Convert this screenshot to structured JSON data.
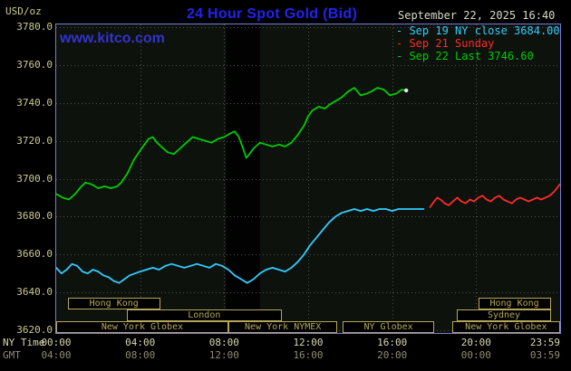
{
  "header": {
    "units_label": "USD/oz",
    "title": "24 Hour Spot Gold (Bid)",
    "datetime": "September 22, 2025 16:40",
    "watermark": "www.kitco.com"
  },
  "axes": {
    "y_tick_labels": [
      "3780.0",
      "3760.0",
      "3740.0",
      "3720.0",
      "3700.0",
      "3680.0",
      "3660.0",
      "3640.0",
      "3620.0"
    ],
    "y_min": 3620,
    "y_max": 3780,
    "x_axis_rows": {
      "ny_label": "NY Time",
      "gmt_label": "GMT",
      "tick_hours": [
        0,
        4,
        8,
        12,
        16,
        20,
        23.983
      ],
      "ny_ticks": [
        "00:00",
        "04:00",
        "08:00",
        "12:00",
        "16:00",
        "20:00",
        "23:59"
      ],
      "gmt_ticks": [
        "04:00",
        "08:00",
        "12:00",
        "16:00",
        "20:00",
        "00:00",
        "03:59"
      ]
    }
  },
  "sessions": [
    {
      "row": 0,
      "start": 0.55,
      "end": 4.95,
      "label": "Hong Kong"
    },
    {
      "row": 0,
      "start": 20.1,
      "end": 23.55,
      "label": "Hong Kong"
    },
    {
      "row": 1,
      "start": 3.35,
      "end": 10.75,
      "label": "London"
    },
    {
      "row": 1,
      "start": 19.1,
      "end": 23.55,
      "label": "Sydney"
    },
    {
      "row": 2,
      "start": 0,
      "end": 8.2,
      "label": "New York Globex"
    },
    {
      "row": 2,
      "start": 8.2,
      "end": 13.4,
      "label": "New York NYMEX"
    },
    {
      "row": 2,
      "start": 13.65,
      "end": 18.0,
      "label": "NY Globex"
    },
    {
      "row": 2,
      "start": 18.85,
      "end": 24,
      "label": "New York Globex"
    }
  ],
  "chart_data": {
    "type": "line",
    "title": "24 Hour Spot Gold (Bid)",
    "x_unit": "NY time (hours 0-24)",
    "y_unit": "USD/oz",
    "xlim": [
      0,
      24
    ],
    "ylim": [
      3620,
      3780
    ],
    "grid": true,
    "legend_position": "top-right",
    "highlight_band_hours": [
      8.1,
      9.7
    ],
    "series": [
      {
        "id": "sep19",
        "name": "Sep 19 NY close 3684.00",
        "color": "#33ccff",
        "points": [
          [
            0,
            3653
          ],
          [
            0.25,
            3650
          ],
          [
            0.5,
            3652
          ],
          [
            0.75,
            3655
          ],
          [
            1,
            3654
          ],
          [
            1.25,
            3651
          ],
          [
            1.5,
            3650
          ],
          [
            1.75,
            3652
          ],
          [
            2,
            3651
          ],
          [
            2.25,
            3649
          ],
          [
            2.5,
            3648
          ],
          [
            2.75,
            3646
          ],
          [
            3,
            3645
          ],
          [
            3.25,
            3647
          ],
          [
            3.5,
            3649
          ],
          [
            3.75,
            3650
          ],
          [
            4,
            3651
          ],
          [
            4.3,
            3652
          ],
          [
            4.6,
            3653
          ],
          [
            4.9,
            3652
          ],
          [
            5.2,
            3654
          ],
          [
            5.5,
            3655
          ],
          [
            5.8,
            3654
          ],
          [
            6.1,
            3653
          ],
          [
            6.4,
            3654
          ],
          [
            6.7,
            3655
          ],
          [
            7,
            3654
          ],
          [
            7.3,
            3653
          ],
          [
            7.6,
            3655
          ],
          [
            7.9,
            3654
          ],
          [
            8.2,
            3652
          ],
          [
            8.5,
            3649
          ],
          [
            8.8,
            3647
          ],
          [
            9.1,
            3645
          ],
          [
            9.4,
            3647
          ],
          [
            9.7,
            3650
          ],
          [
            10,
            3652
          ],
          [
            10.3,
            3653
          ],
          [
            10.6,
            3652
          ],
          [
            10.9,
            3651
          ],
          [
            11.2,
            3653
          ],
          [
            11.5,
            3656
          ],
          [
            11.8,
            3660
          ],
          [
            12.1,
            3665
          ],
          [
            12.4,
            3669
          ],
          [
            12.7,
            3673
          ],
          [
            13,
            3677
          ],
          [
            13.3,
            3680
          ],
          [
            13.6,
            3682
          ],
          [
            13.9,
            3683
          ],
          [
            14.2,
            3684
          ],
          [
            14.5,
            3683
          ],
          [
            14.8,
            3684
          ],
          [
            15.1,
            3683
          ],
          [
            15.4,
            3684
          ],
          [
            15.7,
            3684
          ],
          [
            16,
            3683
          ],
          [
            16.3,
            3684
          ],
          [
            16.6,
            3684
          ],
          [
            16.9,
            3684
          ],
          [
            17.2,
            3684
          ],
          [
            17.5,
            3684
          ]
        ]
      },
      {
        "id": "sep21",
        "name": "Sep 21 Sunday",
        "color": "#ff2a2a",
        "points": [
          [
            17.8,
            3685
          ],
          [
            18,
            3688
          ],
          [
            18.15,
            3690
          ],
          [
            18.3,
            3689
          ],
          [
            18.5,
            3687
          ],
          [
            18.7,
            3686
          ],
          [
            18.9,
            3688
          ],
          [
            19.1,
            3690
          ],
          [
            19.3,
            3688
          ],
          [
            19.5,
            3687
          ],
          [
            19.7,
            3689
          ],
          [
            19.9,
            3688
          ],
          [
            20.1,
            3690
          ],
          [
            20.3,
            3691
          ],
          [
            20.5,
            3689
          ],
          [
            20.7,
            3688
          ],
          [
            20.9,
            3690
          ],
          [
            21.1,
            3691
          ],
          [
            21.3,
            3689
          ],
          [
            21.5,
            3688
          ],
          [
            21.7,
            3687
          ],
          [
            21.9,
            3689
          ],
          [
            22.1,
            3690
          ],
          [
            22.3,
            3689
          ],
          [
            22.5,
            3688
          ],
          [
            22.7,
            3689
          ],
          [
            22.9,
            3690
          ],
          [
            23.1,
            3689
          ],
          [
            23.3,
            3690
          ],
          [
            23.5,
            3691
          ],
          [
            23.7,
            3693
          ],
          [
            23.85,
            3695
          ],
          [
            23.98,
            3697
          ]
        ]
      },
      {
        "id": "sep22",
        "name": "Sep 22 Last 3746.60",
        "color": "#00cc00",
        "end_marker": true,
        "points": [
          [
            0,
            3692
          ],
          [
            0.3,
            3690
          ],
          [
            0.6,
            3689
          ],
          [
            0.9,
            3692
          ],
          [
            1.2,
            3696
          ],
          [
            1.4,
            3698
          ],
          [
            1.7,
            3697
          ],
          [
            2,
            3695
          ],
          [
            2.3,
            3696
          ],
          [
            2.6,
            3695
          ],
          [
            2.9,
            3696
          ],
          [
            3.1,
            3698
          ],
          [
            3.4,
            3703
          ],
          [
            3.7,
            3710
          ],
          [
            4,
            3715
          ],
          [
            4.2,
            3718
          ],
          [
            4.4,
            3721
          ],
          [
            4.6,
            3722
          ],
          [
            4.8,
            3719
          ],
          [
            5,
            3717
          ],
          [
            5.3,
            3714
          ],
          [
            5.6,
            3713
          ],
          [
            5.9,
            3716
          ],
          [
            6.2,
            3719
          ],
          [
            6.5,
            3722
          ],
          [
            6.8,
            3721
          ],
          [
            7.1,
            3720
          ],
          [
            7.4,
            3719
          ],
          [
            7.7,
            3721
          ],
          [
            8,
            3722
          ],
          [
            8.3,
            3724
          ],
          [
            8.5,
            3725
          ],
          [
            8.7,
            3722
          ],
          [
            8.9,
            3716
          ],
          [
            9.05,
            3711
          ],
          [
            9.2,
            3713
          ],
          [
            9.4,
            3716
          ],
          [
            9.7,
            3719
          ],
          [
            10,
            3718
          ],
          [
            10.3,
            3717
          ],
          [
            10.6,
            3718
          ],
          [
            10.9,
            3717
          ],
          [
            11.2,
            3719
          ],
          [
            11.5,
            3723
          ],
          [
            11.8,
            3728
          ],
          [
            12,
            3733
          ],
          [
            12.2,
            3736
          ],
          [
            12.5,
            3738
          ],
          [
            12.8,
            3737
          ],
          [
            13,
            3739
          ],
          [
            13.3,
            3741
          ],
          [
            13.6,
            3743
          ],
          [
            13.9,
            3746
          ],
          [
            14.2,
            3748
          ],
          [
            14.5,
            3744
          ],
          [
            14.8,
            3745
          ],
          [
            15,
            3746
          ],
          [
            15.3,
            3748
          ],
          [
            15.6,
            3747
          ],
          [
            15.9,
            3744
          ],
          [
            16.2,
            3745
          ],
          [
            16.45,
            3747
          ],
          [
            16.67,
            3746.6
          ]
        ]
      }
    ]
  },
  "colors": {
    "background": "#000000",
    "plot_background": "#0d120d",
    "band": "#020202",
    "border": "#7b7bd5",
    "grid": "#4f4f4f",
    "title": "#2222ee",
    "watermark": "#3333cc",
    "datetime": "#d8d8c8",
    "axis_text": "#cdc98f",
    "ny_tick_text": "#d9d6b0",
    "gmt_tick_text": "#8f8c72",
    "session_box": "#b5a75a",
    "end_marker": "#e8e8e8"
  }
}
